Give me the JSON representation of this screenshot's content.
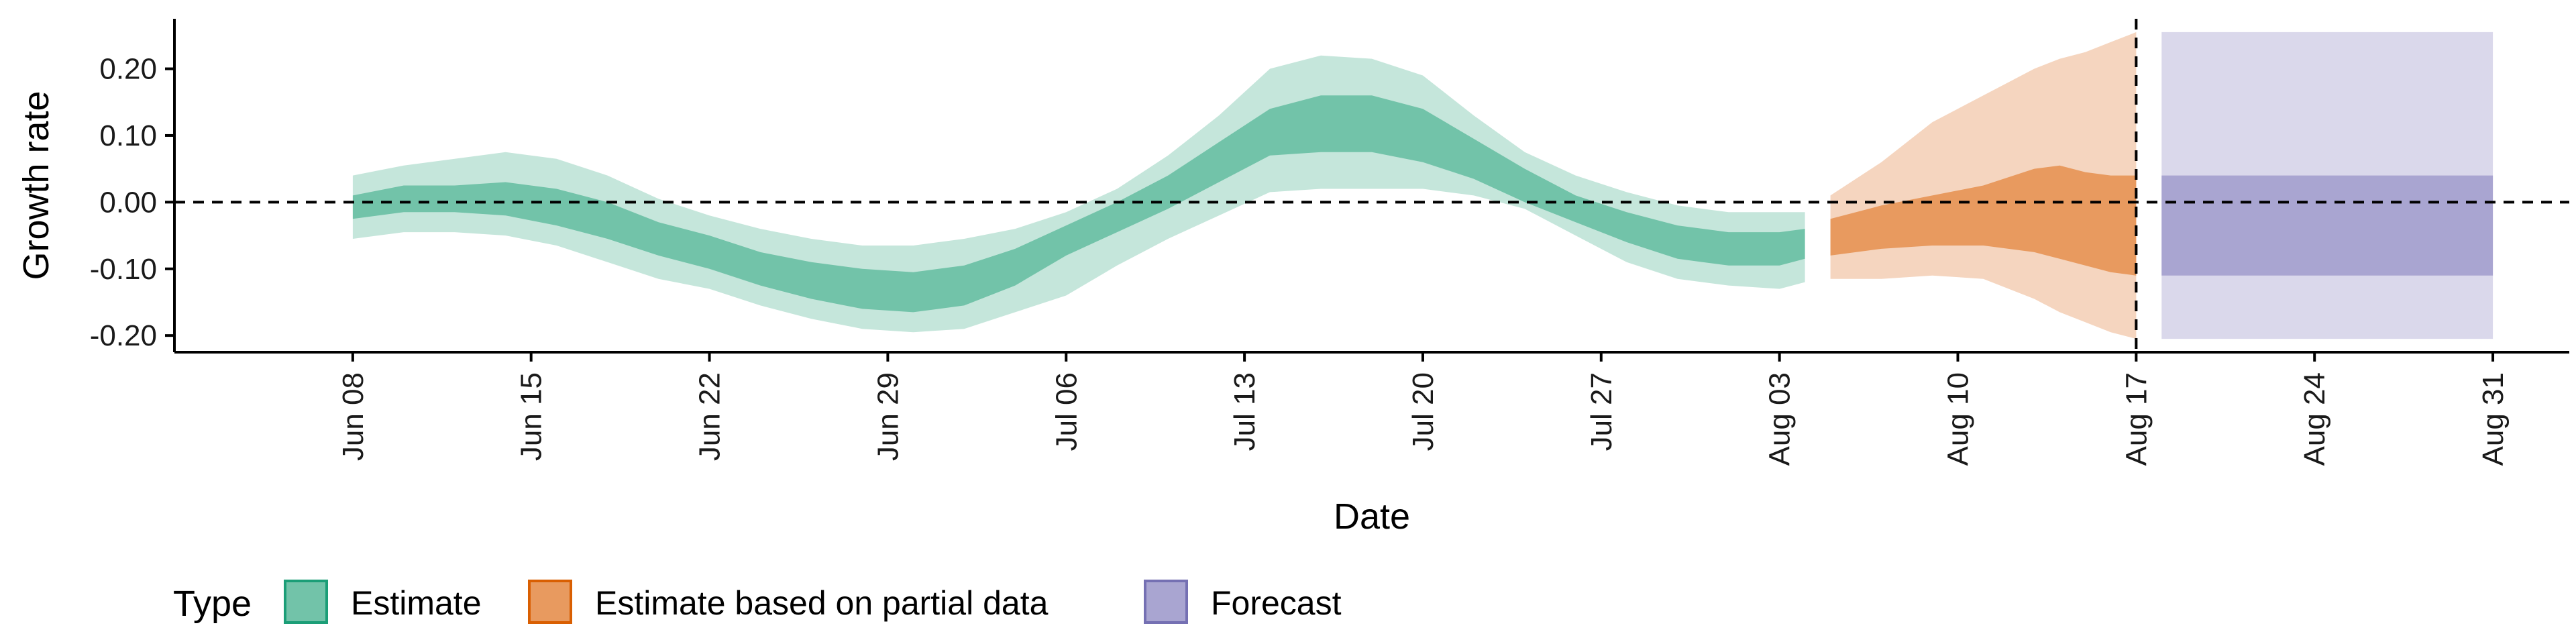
{
  "chart_data": {
    "type": "area",
    "xlabel": "Date",
    "ylabel": "Growth rate",
    "xlim": [
      "2020-06-01",
      "2020-09-03"
    ],
    "ylim": [
      -0.225,
      0.275
    ],
    "x_ticks": [
      "2020-06-08",
      "2020-06-15",
      "2020-06-22",
      "2020-06-29",
      "2020-07-06",
      "2020-07-13",
      "2020-07-20",
      "2020-07-27",
      "2020-08-03",
      "2020-08-10",
      "2020-08-17",
      "2020-08-24",
      "2020-08-31"
    ],
    "x_tick_labels": [
      "Jun 08",
      "Jun 15",
      "Jun 22",
      "Jun 29",
      "Jul 06",
      "Jul 13",
      "Jul 20",
      "Jul 27",
      "Aug 03",
      "Aug 10",
      "Aug 17",
      "Aug 24",
      "Aug 31"
    ],
    "y_ticks": [
      -0.2,
      -0.1,
      0.0,
      0.1,
      0.2
    ],
    "y_tick_labels": [
      "-0.20",
      "-0.10",
      "0.00",
      "0.10",
      "0.20"
    ],
    "hline": 0,
    "vline": "2020-08-17",
    "legend": {
      "title": "Type",
      "position": "bottom-left",
      "entries": [
        "Estimate",
        "Estimate based on partial data",
        "Forecast"
      ]
    },
    "series": [
      {
        "name": "Estimate",
        "color_outer": "#c5e6db",
        "color_inner": "#72c3a9",
        "stroke": "#1b9e77",
        "x": [
          "2020-06-08",
          "2020-06-10",
          "2020-06-12",
          "2020-06-14",
          "2020-06-16",
          "2020-06-18",
          "2020-06-20",
          "2020-06-22",
          "2020-06-24",
          "2020-06-26",
          "2020-06-28",
          "2020-06-30",
          "2020-07-02",
          "2020-07-04",
          "2020-07-06",
          "2020-07-08",
          "2020-07-10",
          "2020-07-12",
          "2020-07-14",
          "2020-07-16",
          "2020-07-18",
          "2020-07-20",
          "2020-07-22",
          "2020-07-24",
          "2020-07-26",
          "2020-07-28",
          "2020-07-30",
          "2020-08-01",
          "2020-08-03",
          "2020-08-04"
        ],
        "outer_low": [
          -0.055,
          -0.045,
          -0.045,
          -0.05,
          -0.065,
          -0.09,
          -0.115,
          -0.13,
          -0.155,
          -0.175,
          -0.19,
          -0.195,
          -0.19,
          -0.165,
          -0.14,
          -0.095,
          -0.055,
          -0.02,
          0.015,
          0.02,
          0.02,
          0.02,
          0.01,
          -0.01,
          -0.05,
          -0.09,
          -0.115,
          -0.125,
          -0.13,
          -0.12
        ],
        "outer_high": [
          0.04,
          0.055,
          0.065,
          0.075,
          0.065,
          0.04,
          0.005,
          -0.02,
          -0.04,
          -0.055,
          -0.065,
          -0.065,
          -0.055,
          -0.04,
          -0.015,
          0.02,
          0.07,
          0.13,
          0.2,
          0.22,
          0.215,
          0.19,
          0.13,
          0.075,
          0.04,
          0.015,
          -0.005,
          -0.015,
          -0.015,
          -0.015
        ],
        "inner_low": [
          -0.025,
          -0.015,
          -0.015,
          -0.02,
          -0.035,
          -0.055,
          -0.08,
          -0.1,
          -0.125,
          -0.145,
          -0.16,
          -0.165,
          -0.155,
          -0.125,
          -0.08,
          -0.045,
          -0.01,
          0.03,
          0.07,
          0.075,
          0.075,
          0.06,
          0.035,
          0.0,
          -0.03,
          -0.06,
          -0.085,
          -0.095,
          -0.095,
          -0.085
        ],
        "inner_high": [
          0.01,
          0.025,
          0.025,
          0.03,
          0.02,
          0.0,
          -0.03,
          -0.05,
          -0.075,
          -0.09,
          -0.1,
          -0.105,
          -0.095,
          -0.07,
          -0.035,
          0.0,
          0.04,
          0.09,
          0.14,
          0.16,
          0.16,
          0.14,
          0.095,
          0.05,
          0.01,
          -0.015,
          -0.035,
          -0.045,
          -0.045,
          -0.04
        ]
      },
      {
        "name": "Estimate based on partial data",
        "color_outer": "#f5d5bf",
        "color_inner": "#e89a5f",
        "stroke": "#d95f02",
        "x": [
          "2020-08-05",
          "2020-08-07",
          "2020-08-09",
          "2020-08-11",
          "2020-08-13",
          "2020-08-14",
          "2020-08-15",
          "2020-08-16",
          "2020-08-17"
        ],
        "outer_low": [
          -0.115,
          -0.115,
          -0.11,
          -0.115,
          -0.145,
          -0.165,
          -0.18,
          -0.195,
          -0.205
        ],
        "outer_high": [
          0.01,
          0.06,
          0.12,
          0.16,
          0.2,
          0.215,
          0.225,
          0.24,
          0.255
        ],
        "inner_low": [
          -0.08,
          -0.07,
          -0.065,
          -0.065,
          -0.075,
          -0.085,
          -0.095,
          -0.105,
          -0.11
        ],
        "inner_high": [
          -0.025,
          -0.005,
          0.01,
          0.025,
          0.05,
          0.055,
          0.045,
          0.04,
          0.04
        ]
      },
      {
        "name": "Forecast",
        "color_outer": "#dad8eb",
        "color_inner": "#a9a5d1",
        "stroke": "#7570b3",
        "x": [
          "2020-08-18",
          "2020-08-31"
        ],
        "outer_low": [
          -0.205,
          -0.205
        ],
        "outer_high": [
          0.255,
          0.255
        ],
        "inner_low": [
          -0.11,
          -0.11
        ],
        "inner_high": [
          0.04,
          0.04
        ]
      }
    ]
  }
}
